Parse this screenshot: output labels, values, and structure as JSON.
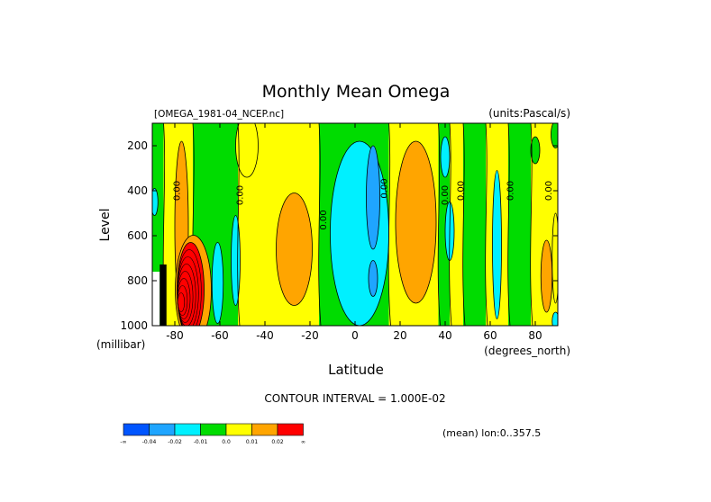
{
  "chart_data": {
    "type": "heatmap",
    "title": "Monthly Mean Omega",
    "source_label": "[OMEGA_1981-04_NCEP.nc]",
    "units_label": "(units:Pascal/s)",
    "xlabel": "Latitude",
    "ylabel": "Level",
    "x_unit_label": "(degrees_north)",
    "y_unit_label": "(millibar)",
    "xlim": [
      -90,
      90
    ],
    "ylim": [
      1000,
      100
    ],
    "x_ticks": [
      -80,
      -60,
      -40,
      -20,
      0,
      20,
      40,
      60,
      80
    ],
    "x_tick_labels": [
      "-80",
      "-60",
      "-40",
      "-20",
      "0",
      "20",
      "40",
      "60",
      "80"
    ],
    "y_ticks": [
      200,
      400,
      600,
      800,
      1000
    ],
    "y_tick_labels": [
      "200",
      "400",
      "600",
      "800",
      "1000"
    ],
    "contour_interval_text": "CONTOUR INTERVAL = 1.000E-02",
    "mean_note": "(mean) lon:0..357.5",
    "colorbar": {
      "labels": [
        "-∞",
        "-0.04",
        "-0.02",
        "-0.01",
        "0.0",
        "0.01",
        "0.02",
        "∞"
      ],
      "colors": [
        "#0055ff",
        "#1fa5ff",
        "#00f0ff",
        "#00dc00",
        "#ffff00",
        "#ffa500",
        "#ff0000"
      ]
    },
    "contour_labels": [
      {
        "text": "0.00",
        "x": -79,
        "y": 400
      },
      {
        "text": "0.00",
        "x": -51,
        "y": 420
      },
      {
        "text": "0.00",
        "x": -14,
        "y": 530
      },
      {
        "text": "0.00",
        "x": 13,
        "y": 390
      },
      {
        "text": "0.00",
        "x": 40,
        "y": 420
      },
      {
        "text": "0.00",
        "x": 47,
        "y": 400
      },
      {
        "text": "0.00",
        "x": 69,
        "y": 400
      },
      {
        "text": "0.00",
        "x": 86,
        "y": 400
      }
    ],
    "columns": [
      {
        "x0": -90,
        "x1": -85,
        "band": "green"
      },
      {
        "x0": -85,
        "x1": -72,
        "band": "yellow"
      },
      {
        "x0": -72,
        "x1": -52,
        "band": "green"
      },
      {
        "x0": -52,
        "x1": -16,
        "band": "yellow"
      },
      {
        "x0": -16,
        "x1": 15,
        "band": "green"
      },
      {
        "x0": 15,
        "x1": 37,
        "band": "yellow"
      },
      {
        "x0": 37,
        "x1": 42,
        "band": "green"
      },
      {
        "x0": 42,
        "x1": 48,
        "band": "yellow"
      },
      {
        "x0": 48,
        "x1": 58,
        "band": "green"
      },
      {
        "x0": 58,
        "x1": 68,
        "band": "yellow"
      },
      {
        "x0": 68,
        "x1": 78,
        "band": "green"
      },
      {
        "x0": 78,
        "x1": 90,
        "band": "yellow"
      }
    ],
    "blobs": [
      {
        "band": "yellow",
        "cx": -48,
        "cy": 200,
        "rx": 5,
        "ry": 140
      },
      {
        "band": "orange",
        "cx": -77,
        "cy": 560,
        "rx": 3,
        "ry": 380
      },
      {
        "band": "orange",
        "cx": -27,
        "cy": 660,
        "rx": 8,
        "ry": 250
      },
      {
        "band": "cyan",
        "cx": 2,
        "cy": 590,
        "rx": 13,
        "ry": 410
      },
      {
        "band": "sky",
        "cx": 8,
        "cy": 430,
        "rx": 3,
        "ry": 230
      },
      {
        "band": "sky",
        "cx": 8,
        "cy": 790,
        "rx": 2,
        "ry": 80
      },
      {
        "band": "orange",
        "cx": 27,
        "cy": 540,
        "rx": 9,
        "ry": 360
      },
      {
        "band": "cyan",
        "cx": -61,
        "cy": 810,
        "rx": 2.5,
        "ry": 180
      },
      {
        "band": "cyan",
        "cx": -53,
        "cy": 710,
        "rx": 2,
        "ry": 200
      },
      {
        "band": "cyan",
        "cx": 40,
        "cy": 250,
        "rx": 2,
        "ry": 90
      },
      {
        "band": "cyan",
        "cx": 42,
        "cy": 580,
        "rx": 2,
        "ry": 130
      },
      {
        "band": "cyan",
        "cx": 63,
        "cy": 640,
        "rx": 2,
        "ry": 330
      },
      {
        "band": "cyan",
        "cx": -89,
        "cy": 450,
        "rx": 1.5,
        "ry": 60
      },
      {
        "band": "cyan",
        "cx": 89,
        "cy": 980,
        "rx": 1.5,
        "ry": 40
      },
      {
        "band": "orange",
        "cx": 85,
        "cy": 780,
        "rx": 2.5,
        "ry": 160
      },
      {
        "band": "green",
        "cx": 89,
        "cy": 150,
        "rx": 2,
        "ry": 60
      },
      {
        "band": "green",
        "cx": 80,
        "cy": 220,
        "rx": 2,
        "ry": 60
      },
      {
        "band": "yellow",
        "cx": 89,
        "cy": 700,
        "rx": 1.5,
        "ry": 200
      }
    ],
    "anomaly_region": {
      "red_cx": -73,
      "red_cy": 840,
      "red_rx": 6,
      "red_ry": 210,
      "mask_x0": -90,
      "mask_x1": -84,
      "mask_y0": 760,
      "mask_y1": 1000
    }
  }
}
